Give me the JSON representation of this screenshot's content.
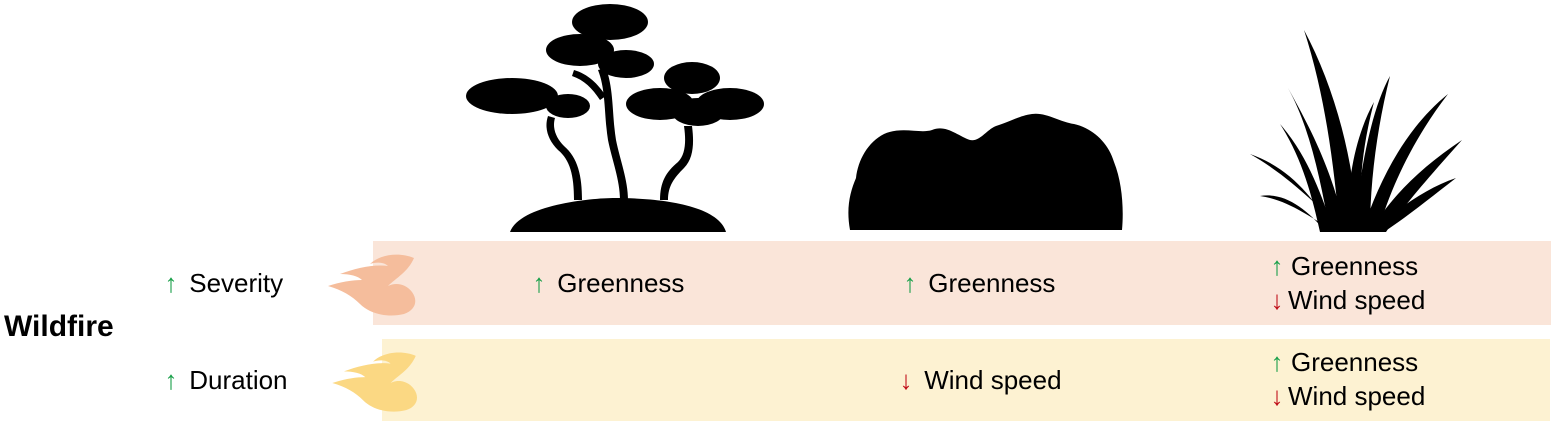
{
  "title": "Wildfire",
  "rows": {
    "severity": {
      "label": "Severity",
      "arrow": "↑",
      "color": "#f5bd9c"
    },
    "duration": {
      "label": "Duration",
      "arrow": "↑",
      "color": "#fbd883"
    }
  },
  "cells": {
    "severity_tree": {
      "l1_arrow": "↑",
      "l1_text": "Greenness"
    },
    "severity_shrub": {
      "l1_arrow": "↑",
      "l1_text": "Greenness"
    },
    "severity_grass": {
      "l1_arrow": "↑",
      "l1_text": "Greenness",
      "l2_arrow": "↓",
      "l2_text": "Wind speed"
    },
    "duration_shrub": {
      "l1_arrow": "↓",
      "l1_text": "Wind speed"
    },
    "duration_grass": {
      "l1_arrow": "↑",
      "l1_text": "Greenness",
      "l2_arrow": "↓",
      "l2_text": "Wind speed"
    }
  },
  "colors": {
    "up_arrow": "#1aa04a",
    "down_arrow": "#c0111b",
    "severity_band": "#fae5d9",
    "duration_band": "#fdf2d2"
  },
  "icons": [
    "tree-silhouette-icon",
    "shrub-silhouette-icon",
    "grass-silhouette-icon",
    "flame-icon"
  ]
}
